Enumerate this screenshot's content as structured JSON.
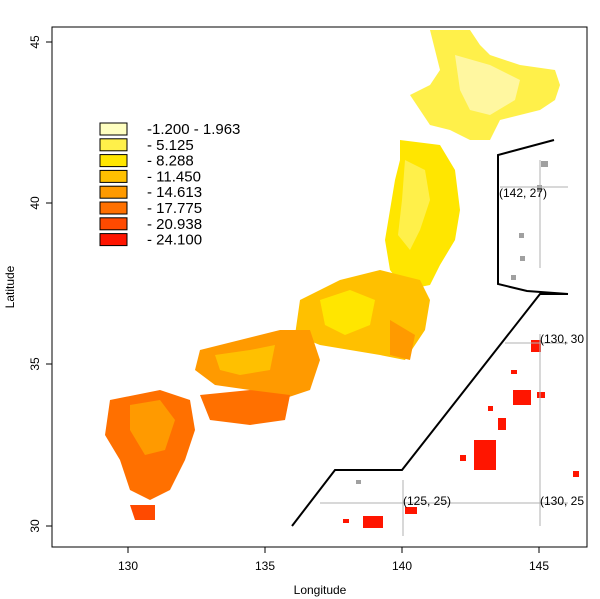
{
  "chart_data": {
    "type": "map",
    "xlabel": "Longitude",
    "ylabel": "Latitude",
    "x_ticks": [
      "130",
      "135",
      "140",
      "145"
    ],
    "y_ticks": [
      "30",
      "35",
      "40",
      "45"
    ],
    "xlim": [
      127.3,
      146.8
    ],
    "ylim": [
      29.4,
      45.5
    ],
    "legend": {
      "placement": "top-left",
      "entries": [
        {
          "label": "-1.200 - 1.963",
          "color": "#FFFFC0"
        },
        {
          "label": "- 5.125",
          "color": "#FFF04A"
        },
        {
          "label": "- 8.288",
          "color": "#FFE600"
        },
        {
          "label": "- 11.450",
          "color": "#FFC000"
        },
        {
          "label": "- 14.613",
          "color": "#FF9A00"
        },
        {
          "label": "- 17.775",
          "color": "#FF7000"
        },
        {
          "label": "- 20.938",
          "color": "#FF4A00"
        },
        {
          "label": "- 24.100",
          "color": "#FF1500"
        }
      ]
    },
    "inset_labels": [
      {
        "text": "(142, 27)"
      },
      {
        "text": "(130, 30"
      },
      {
        "text": "(125, 25)"
      },
      {
        "text": "(130, 25"
      }
    ]
  }
}
